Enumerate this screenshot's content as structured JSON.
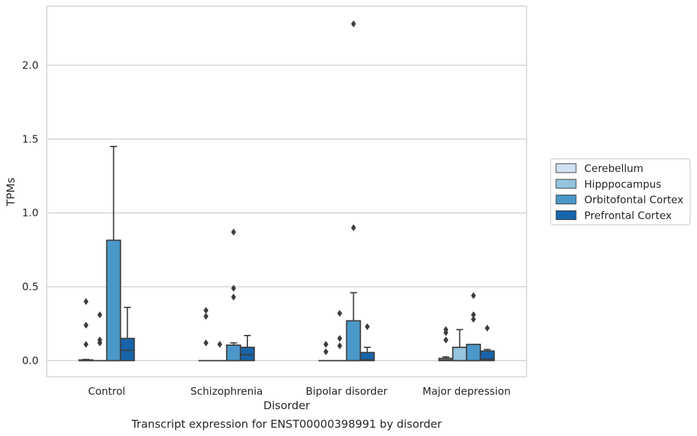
{
  "chart_data": {
    "type": "box",
    "title": "Transcript expression for ENST00000398991 by disorder",
    "xlabel": "Disorder",
    "ylabel": "TPMs",
    "ylim": [
      -0.11,
      2.4
    ],
    "yticks": [
      "0.0",
      "0.5",
      "1.0",
      "1.5",
      "2.0"
    ],
    "grid": "horizontal",
    "legend_position": "right",
    "categories": [
      "Control",
      "Schizophrenia",
      "Bipolar disorder",
      "Major depression"
    ],
    "series": [
      {
        "name": "Cerebellum",
        "color": "#d0e1f2",
        "boxes": [
          {
            "whisker_low": 0,
            "q1": 0,
            "median": 0,
            "q3": 0.005,
            "whisker_high": 0.008,
            "outliers": [
              0.11,
              0.24,
              0.4
            ]
          },
          {
            "whisker_low": 0,
            "q1": 0,
            "median": 0,
            "q3": 0,
            "whisker_high": 0,
            "outliers": [
              0.12,
              0.3,
              0.34
            ]
          },
          {
            "whisker_low": 0,
            "q1": 0,
            "median": 0,
            "q3": 0,
            "whisker_high": 0,
            "outliers": [
              0.06,
              0.11
            ]
          },
          {
            "whisker_low": 0,
            "q1": 0,
            "median": 0.005,
            "q3": 0.015,
            "whisker_high": 0.025,
            "outliers": [
              0.14,
              0.19,
              0.21
            ]
          }
        ]
      },
      {
        "name": "Hipppocampus",
        "color": "#94c4df",
        "boxes": [
          {
            "whisker_low": 0,
            "q1": 0,
            "median": 0,
            "q3": 0,
            "whisker_high": 0,
            "outliers": [
              0.12,
              0.14,
              0.31
            ]
          },
          {
            "whisker_low": 0,
            "q1": 0,
            "median": 0,
            "q3": 0,
            "whisker_high": 0,
            "outliers": [
              0.11
            ]
          },
          {
            "whisker_low": 0,
            "q1": 0,
            "median": 0,
            "q3": 0,
            "whisker_high": 0,
            "outliers": [
              0.1,
              0.15,
              0.32
            ]
          },
          {
            "whisker_low": 0,
            "q1": 0,
            "median": 0,
            "q3": 0.09,
            "whisker_high": 0.21,
            "outliers": []
          }
        ]
      },
      {
        "name": "Orbitofontal Cortex",
        "color": "#4a98c9",
        "boxes": [
          {
            "whisker_low": 0,
            "q1": 0,
            "median": 0,
            "q3": 0.815,
            "whisker_high": 1.45,
            "outliers": []
          },
          {
            "whisker_low": 0,
            "q1": 0,
            "median": 0,
            "q3": 0.105,
            "whisker_high": 0.12,
            "outliers": [
              0.43,
              0.49,
              0.87
            ]
          },
          {
            "whisker_low": 0,
            "q1": 0,
            "median": 0,
            "q3": 0.27,
            "whisker_high": 0.46,
            "outliers": [
              0.9,
              2.28
            ]
          },
          {
            "whisker_low": 0,
            "q1": 0,
            "median": 0,
            "q3": 0.11,
            "whisker_high": 0.11,
            "outliers": [
              0.28,
              0.31,
              0.44
            ]
          }
        ]
      },
      {
        "name": "Prefrontal Cortex",
        "color": "#1764ab",
        "boxes": [
          {
            "whisker_low": 0,
            "q1": 0,
            "median": 0.07,
            "q3": 0.15,
            "whisker_high": 0.36,
            "outliers": []
          },
          {
            "whisker_low": 0,
            "q1": 0,
            "median": 0.04,
            "q3": 0.09,
            "whisker_high": 0.17,
            "outliers": []
          },
          {
            "whisker_low": 0,
            "q1": 0,
            "median": 0.005,
            "q3": 0.055,
            "whisker_high": 0.09,
            "outliers": [
              0.23
            ]
          },
          {
            "whisker_low": 0,
            "q1": 0,
            "median": 0.01,
            "q3": 0.065,
            "whisker_high": 0.075,
            "outliers": [
              0.22
            ]
          }
        ]
      }
    ]
  }
}
